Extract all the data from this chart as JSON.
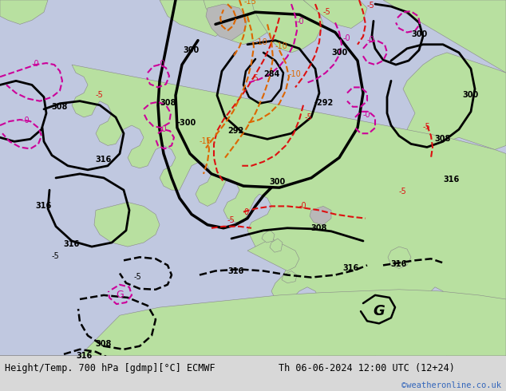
{
  "title_left": "Height/Temp. 700 hPa [gdmp][°C] ECMWF",
  "title_right": "Th 06-06-2024 12:00 UTC (12+24)",
  "credit": "©weatheronline.co.uk",
  "footer_bg": "#d8d8d8",
  "credit_color": "#3366bb",
  "map_sea": "#c0c8e0",
  "map_land_green": "#b8e0a0",
  "map_land_gray": "#b8b8b8",
  "contour_black": "#000000",
  "contour_red": "#dd1111",
  "contour_orange": "#dd6600",
  "contour_magenta": "#cc0099"
}
